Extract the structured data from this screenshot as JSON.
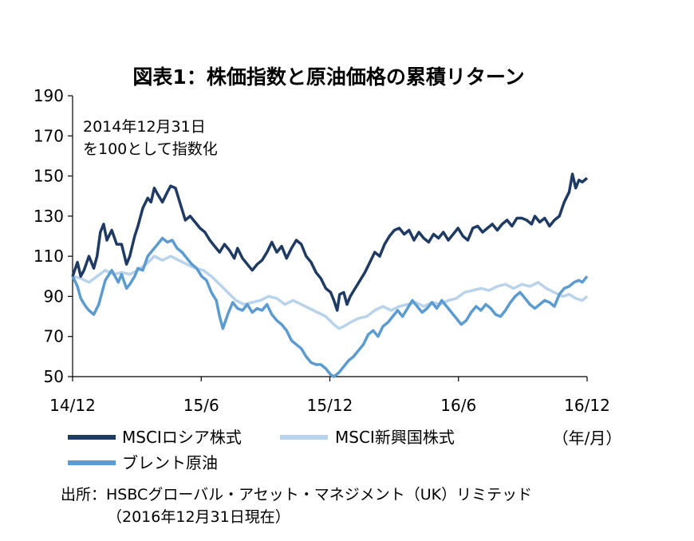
{
  "chart_data": {
    "type": "line",
    "title": "図表1：株価指数と原油価格の累積リターン",
    "annotation": [
      "2014年12月31日",
      "を100として指数化"
    ],
    "x_tick_labels": [
      "14/12",
      "15/6",
      "15/12",
      "16/6",
      "16/12"
    ],
    "x_unit": "（年/月）",
    "y_ticks": [
      50,
      70,
      90,
      110,
      130,
      150,
      170,
      190
    ],
    "ylim": [
      50,
      190
    ],
    "grid": false,
    "x_start_month": 0,
    "x_end_month": 24,
    "series": [
      {
        "name": "MSCIロシア株式",
        "color": "#1f3b63",
        "points": [
          [
            0,
            100
          ],
          [
            0.3,
            107
          ],
          [
            0.5,
            100
          ],
          [
            0.7,
            103
          ],
          [
            1.0,
            110
          ],
          [
            1.3,
            104
          ],
          [
            1.5,
            110
          ],
          [
            1.7,
            122
          ],
          [
            1.9,
            126
          ],
          [
            2.1,
            118
          ],
          [
            2.4,
            123
          ],
          [
            2.7,
            116
          ],
          [
            3.0,
            116
          ],
          [
            3.3,
            106
          ],
          [
            3.5,
            110
          ],
          [
            3.8,
            120
          ],
          [
            4.0,
            125
          ],
          [
            4.3,
            134
          ],
          [
            4.6,
            139
          ],
          [
            4.8,
            137
          ],
          [
            5.0,
            144
          ],
          [
            5.2,
            141
          ],
          [
            5.5,
            137
          ],
          [
            5.8,
            142
          ],
          [
            6.0,
            145
          ],
          [
            6.3,
            144
          ],
          [
            6.6,
            136
          ],
          [
            6.9,
            128
          ],
          [
            7.2,
            130
          ],
          [
            7.5,
            127
          ],
          [
            7.8,
            124
          ],
          [
            8.1,
            122
          ],
          [
            8.4,
            118
          ],
          [
            8.7,
            115
          ],
          [
            9.0,
            112
          ],
          [
            9.3,
            116
          ],
          [
            9.6,
            113
          ],
          [
            9.9,
            109
          ],
          [
            10.1,
            114
          ],
          [
            10.4,
            109
          ],
          [
            10.7,
            106
          ],
          [
            11.0,
            103
          ],
          [
            11.3,
            106
          ],
          [
            11.6,
            108
          ],
          [
            11.9,
            112
          ],
          [
            12.2,
            117
          ],
          [
            12.5,
            112
          ],
          [
            12.8,
            115
          ],
          [
            13.1,
            109
          ],
          [
            13.4,
            114
          ],
          [
            13.7,
            118
          ],
          [
            14.0,
            116
          ],
          [
            14.3,
            110
          ],
          [
            14.6,
            107
          ],
          [
            14.9,
            102
          ],
          [
            15.2,
            99
          ],
          [
            15.5,
            94
          ],
          [
            15.8,
            92
          ],
          [
            16.0,
            88
          ],
          [
            16.2,
            83
          ],
          [
            16.35,
            91
          ],
          [
            16.6,
            92
          ],
          [
            16.8,
            86
          ],
          [
            17.0,
            90
          ],
          [
            17.3,
            94
          ],
          [
            17.6,
            98
          ],
          [
            17.9,
            102
          ],
          [
            18.2,
            107
          ],
          [
            18.5,
            112
          ],
          [
            18.8,
            110
          ],
          [
            19.1,
            116
          ],
          [
            19.4,
            120
          ],
          [
            19.7,
            123
          ],
          [
            20.0,
            124
          ],
          [
            20.3,
            121
          ],
          [
            20.6,
            123
          ],
          [
            20.9,
            118
          ],
          [
            21.2,
            122
          ],
          [
            21.5,
            119
          ],
          [
            21.8,
            117
          ],
          [
            22.1,
            121
          ],
          [
            22.4,
            119
          ],
          [
            22.7,
            122
          ],
          [
            23.0,
            118
          ],
          [
            23.3,
            121
          ],
          [
            23.6,
            124
          ],
          [
            23.9,
            120
          ],
          [
            24.2,
            118
          ],
          [
            24.5,
            124
          ],
          [
            24.8,
            125
          ],
          [
            25.1,
            122
          ],
          [
            25.4,
            124
          ],
          [
            25.7,
            126
          ],
          [
            26.0,
            123
          ],
          [
            26.3,
            126
          ],
          [
            26.6,
            128
          ],
          [
            26.9,
            125
          ],
          [
            27.2,
            129
          ],
          [
            27.5,
            129
          ],
          [
            27.8,
            128
          ],
          [
            28.1,
            126
          ],
          [
            28.3,
            130
          ],
          [
            28.6,
            127
          ],
          [
            28.9,
            129
          ],
          [
            29.2,
            125
          ],
          [
            29.5,
            128
          ],
          [
            29.8,
            130
          ],
          [
            30.1,
            137
          ],
          [
            30.4,
            142
          ],
          [
            30.6,
            151
          ],
          [
            30.8,
            144
          ],
          [
            31.0,
            148
          ],
          [
            31.2,
            147
          ],
          [
            31.5,
            149
          ]
        ]
      },
      {
        "name": "MSCI新興国株式",
        "color": "#b9d3ea",
        "points": [
          [
            0,
            100
          ],
          [
            0.5,
            99
          ],
          [
            1.0,
            97
          ],
          [
            1.5,
            100
          ],
          [
            2.0,
            103
          ],
          [
            2.5,
            101
          ],
          [
            3.0,
            102
          ],
          [
            3.5,
            101
          ],
          [
            4.0,
            103
          ],
          [
            4.5,
            106
          ],
          [
            5.0,
            110
          ],
          [
            5.5,
            108
          ],
          [
            6.0,
            110
          ],
          [
            6.5,
            108
          ],
          [
            7.0,
            106
          ],
          [
            7.5,
            104
          ],
          [
            8.0,
            103
          ],
          [
            8.5,
            100
          ],
          [
            9.0,
            96
          ],
          [
            9.5,
            92
          ],
          [
            10.0,
            88
          ],
          [
            10.5,
            86
          ],
          [
            11.0,
            87
          ],
          [
            11.5,
            88
          ],
          [
            12.0,
            90
          ],
          [
            12.5,
            89
          ],
          [
            13.0,
            86
          ],
          [
            13.5,
            88
          ],
          [
            14.0,
            86
          ],
          [
            14.5,
            84
          ],
          [
            15.0,
            82
          ],
          [
            15.5,
            80
          ],
          [
            16.0,
            76
          ],
          [
            16.3,
            74
          ],
          [
            16.6,
            75
          ],
          [
            17.0,
            77
          ],
          [
            17.5,
            79
          ],
          [
            18.0,
            80
          ],
          [
            18.5,
            83
          ],
          [
            19.0,
            85
          ],
          [
            19.5,
            83
          ],
          [
            20.0,
            85
          ],
          [
            20.5,
            86
          ],
          [
            21.0,
            87
          ],
          [
            21.5,
            85
          ],
          [
            22.0,
            87
          ],
          [
            22.5,
            86
          ],
          [
            23.0,
            88
          ],
          [
            23.5,
            89
          ],
          [
            24.0,
            92
          ],
          [
            24.5,
            93
          ],
          [
            25.0,
            94
          ],
          [
            25.5,
            93
          ],
          [
            26.0,
            95
          ],
          [
            26.5,
            96
          ],
          [
            27.0,
            94
          ],
          [
            27.5,
            96
          ],
          [
            28.0,
            95
          ],
          [
            28.5,
            97
          ],
          [
            29.0,
            94
          ],
          [
            29.5,
            92
          ],
          [
            30.0,
            90
          ],
          [
            30.4,
            91
          ],
          [
            30.8,
            89
          ],
          [
            31.2,
            88
          ],
          [
            31.5,
            90
          ]
        ]
      },
      {
        "name": "ブレント原油",
        "color": "#5b9bd0",
        "points": [
          [
            0,
            100
          ],
          [
            0.3,
            95
          ],
          [
            0.5,
            89
          ],
          [
            0.8,
            85
          ],
          [
            1.0,
            83
          ],
          [
            1.3,
            81
          ],
          [
            1.6,
            86
          ],
          [
            2.0,
            98
          ],
          [
            2.4,
            103
          ],
          [
            2.8,
            97
          ],
          [
            3.0,
            101
          ],
          [
            3.3,
            94
          ],
          [
            3.5,
            96
          ],
          [
            3.8,
            100
          ],
          [
            4.0,
            104
          ],
          [
            4.3,
            103
          ],
          [
            4.6,
            110
          ],
          [
            4.9,
            113
          ],
          [
            5.2,
            116
          ],
          [
            5.5,
            119
          ],
          [
            5.8,
            117
          ],
          [
            6.1,
            118
          ],
          [
            6.4,
            114
          ],
          [
            6.7,
            112
          ],
          [
            7.0,
            109
          ],
          [
            7.3,
            106
          ],
          [
            7.6,
            104
          ],
          [
            7.9,
            100
          ],
          [
            8.2,
            98
          ],
          [
            8.5,
            92
          ],
          [
            8.8,
            88
          ],
          [
            9.0,
            80
          ],
          [
            9.2,
            74
          ],
          [
            9.5,
            81
          ],
          [
            9.8,
            87
          ],
          [
            10.1,
            84
          ],
          [
            10.4,
            83
          ],
          [
            10.7,
            86
          ],
          [
            11.0,
            82
          ],
          [
            11.3,
            84
          ],
          [
            11.6,
            83
          ],
          [
            11.9,
            86
          ],
          [
            12.2,
            81
          ],
          [
            12.5,
            78
          ],
          [
            12.8,
            76
          ],
          [
            13.1,
            73
          ],
          [
            13.4,
            68
          ],
          [
            13.7,
            66
          ],
          [
            14.0,
            64
          ],
          [
            14.3,
            60
          ],
          [
            14.6,
            57
          ],
          [
            14.9,
            56
          ],
          [
            15.2,
            56
          ],
          [
            15.5,
            54
          ],
          [
            15.8,
            51
          ],
          [
            16.0,
            50
          ],
          [
            16.3,
            52
          ],
          [
            16.6,
            55
          ],
          [
            16.9,
            58
          ],
          [
            17.2,
            60
          ],
          [
            17.5,
            63
          ],
          [
            17.8,
            66
          ],
          [
            18.1,
            71
          ],
          [
            18.4,
            73
          ],
          [
            18.7,
            70
          ],
          [
            19.0,
            75
          ],
          [
            19.3,
            77
          ],
          [
            19.6,
            80
          ],
          [
            19.9,
            83
          ],
          [
            20.2,
            80
          ],
          [
            20.5,
            84
          ],
          [
            20.8,
            88
          ],
          [
            21.1,
            85
          ],
          [
            21.4,
            82
          ],
          [
            21.7,
            84
          ],
          [
            22.0,
            87
          ],
          [
            22.3,
            84
          ],
          [
            22.6,
            88
          ],
          [
            22.9,
            85
          ],
          [
            23.2,
            82
          ],
          [
            23.5,
            79
          ],
          [
            23.8,
            76
          ],
          [
            24.1,
            78
          ],
          [
            24.4,
            82
          ],
          [
            24.7,
            85
          ],
          [
            25.0,
            83
          ],
          [
            25.3,
            86
          ],
          [
            25.6,
            84
          ],
          [
            25.9,
            81
          ],
          [
            26.2,
            80
          ],
          [
            26.5,
            83
          ],
          [
            26.8,
            87
          ],
          [
            27.1,
            90
          ],
          [
            27.4,
            92
          ],
          [
            27.7,
            89
          ],
          [
            28.0,
            86
          ],
          [
            28.3,
            84
          ],
          [
            28.6,
            86
          ],
          [
            28.9,
            88
          ],
          [
            29.2,
            87
          ],
          [
            29.5,
            85
          ],
          [
            29.8,
            91
          ],
          [
            30.1,
            94
          ],
          [
            30.4,
            95
          ],
          [
            30.7,
            97
          ],
          [
            31.0,
            98
          ],
          [
            31.2,
            97
          ],
          [
            31.5,
            100
          ]
        ]
      }
    ],
    "legend": [
      "MSCIロシア株式",
      "MSCI新興国株式",
      "ブレント原油"
    ]
  },
  "source": {
    "line1": "出所：HSBCグローバル・アセット・マネジメント（UK）リミテッド",
    "line2": "（2016年12月31日現在）"
  }
}
